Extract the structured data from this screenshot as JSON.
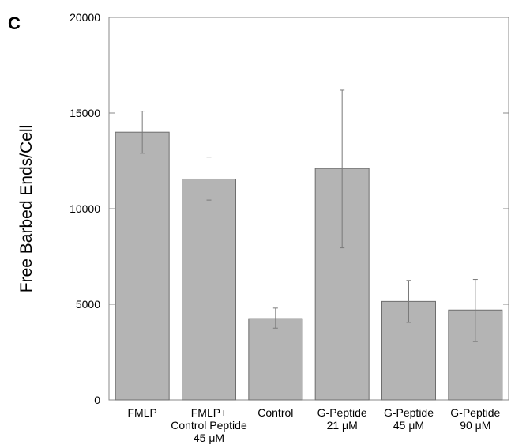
{
  "panel_label": "C",
  "chart_data": {
    "type": "bar",
    "ylabel": "Free Barbed Ends/Cell",
    "xlabel": "",
    "ylim": [
      0,
      20000
    ],
    "yticks": [
      0,
      5000,
      10000,
      15000,
      20000
    ],
    "tick_labels": [
      "0",
      "5000",
      "10000",
      "15000",
      "20000"
    ],
    "categories": [
      [
        "FMLP"
      ],
      [
        "FMLP+",
        "Control Peptide",
        "45 μM"
      ],
      [
        "Control"
      ],
      [
        "G-Peptide",
        "21 μM"
      ],
      [
        "G-Peptide",
        "45 μM"
      ],
      [
        "G-Peptide",
        "90 μM"
      ]
    ],
    "values": [
      14000,
      11550,
      4250,
      12100,
      5150,
      4700
    ],
    "error_low": [
      12900,
      10450,
      3750,
      7950,
      4050,
      3050
    ],
    "error_high": [
      15100,
      12700,
      4800,
      16200,
      6250,
      6300
    ],
    "bar_color": "#b4b4b4",
    "grid": false
  }
}
